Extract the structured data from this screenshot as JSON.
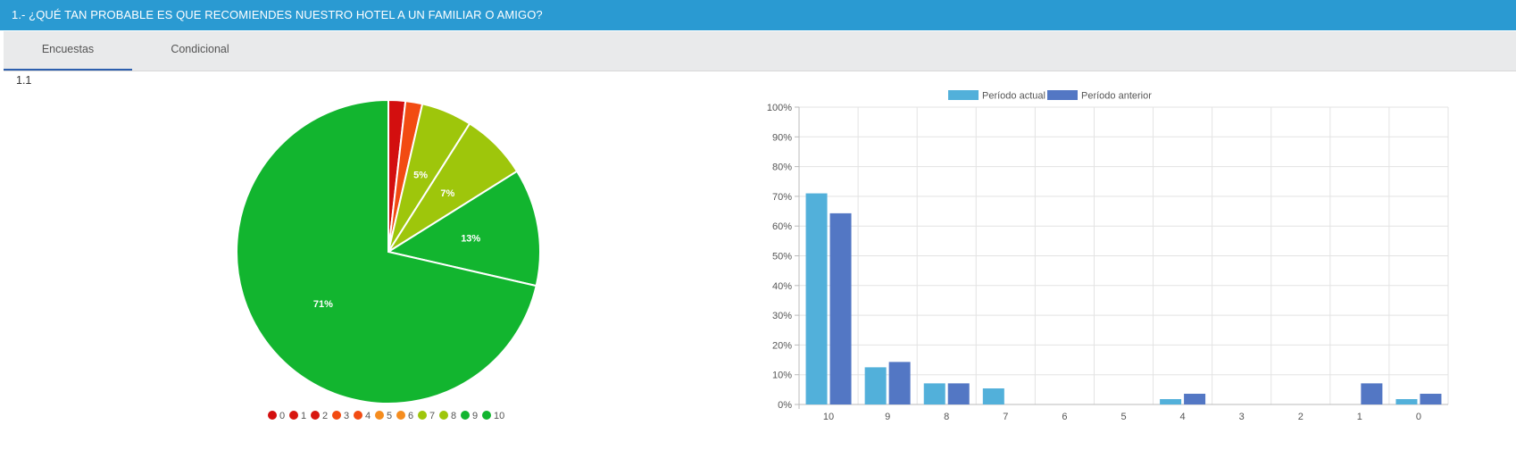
{
  "header": {
    "title": "1.- ¿QUÉ TAN PROBABLE ES QUE RECOMIENDES NUESTRO HOTEL A UN FAMILIAR O AMIGO?"
  },
  "tabs": [
    {
      "label": "Encuestas",
      "active": true
    },
    {
      "label": "Condicional",
      "active": false
    }
  ],
  "section": {
    "label": "1.1"
  },
  "colors": {
    "header_bg": "#2a9ad2",
    "tab_active_underline": "#2d5fae"
  },
  "chart_data": [
    {
      "type": "pie",
      "title": "",
      "legend_position": "bottom",
      "slices": [
        {
          "label": "0",
          "value": 1.8,
          "color": "#d30f0f",
          "data_label": ""
        },
        {
          "label": "1",
          "value": 0,
          "color": "#d8160f",
          "data_label": ""
        },
        {
          "label": "2",
          "value": 0,
          "color": "#d8160f",
          "data_label": ""
        },
        {
          "label": "3",
          "value": 0,
          "color": "#f24b12",
          "data_label": ""
        },
        {
          "label": "4",
          "value": 1.8,
          "color": "#f24b12",
          "data_label": ""
        },
        {
          "label": "5",
          "value": 0,
          "color": "#f58d1f",
          "data_label": ""
        },
        {
          "label": "6",
          "value": 0,
          "color": "#f58d1f",
          "data_label": ""
        },
        {
          "label": "7",
          "value": 5.4,
          "color": "#9ec60b",
          "data_label": "5%"
        },
        {
          "label": "8",
          "value": 7.1,
          "color": "#9ec60b",
          "data_label": "7%"
        },
        {
          "label": "9",
          "value": 12.5,
          "color": "#12b52f",
          "data_label": "13%"
        },
        {
          "label": "10",
          "value": 71.4,
          "color": "#12b52f",
          "data_label": "71%"
        }
      ]
    },
    {
      "type": "bar",
      "title": "",
      "xlabel": "",
      "ylabel": "",
      "legend_position": "top",
      "grid": true,
      "ylim": [
        0,
        100
      ],
      "yticks": [
        "0%",
        "10%",
        "20%",
        "30%",
        "40%",
        "50%",
        "60%",
        "70%",
        "80%",
        "90%",
        "100%"
      ],
      "categories": [
        "10",
        "9",
        "8",
        "7",
        "6",
        "5",
        "4",
        "3",
        "2",
        "1",
        "0"
      ],
      "series": [
        {
          "name": "Período actual",
          "color": "#52b0da",
          "values": [
            71,
            12.5,
            7.1,
            5.4,
            0,
            0,
            1.8,
            0,
            0,
            0,
            1.8
          ]
        },
        {
          "name": "Período anterior",
          "color": "#5377c4",
          "values": [
            64.3,
            14.3,
            7.1,
            0,
            0,
            0,
            3.6,
            0,
            0,
            7.1,
            3.6
          ]
        }
      ]
    }
  ]
}
